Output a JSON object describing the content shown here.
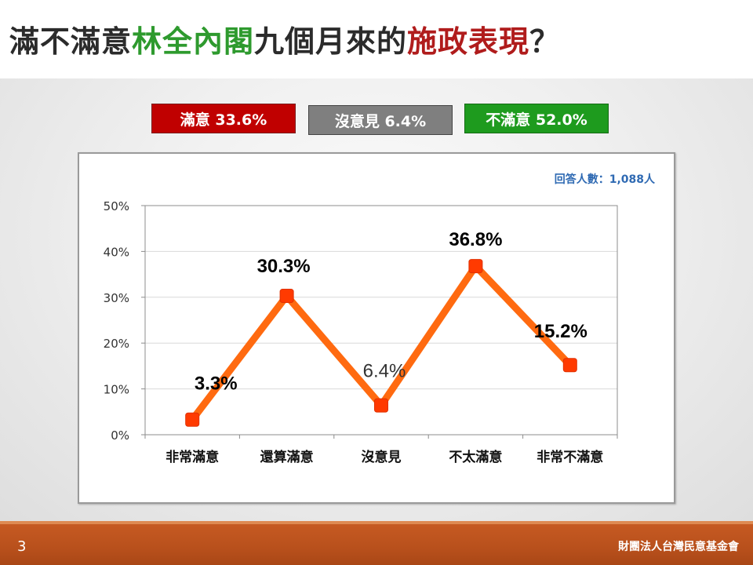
{
  "title": {
    "part1": "滿不滿意",
    "part2": "林全內閣",
    "part3": "九個月來的",
    "part4": "施政表現",
    "part5": "？"
  },
  "summary": {
    "satisfied": "滿意 33.6%",
    "neutral": "沒意見 6.4%",
    "dissatisfied": "不滿意 52.0%"
  },
  "sample_note": "回答人數：1,088人",
  "footer": {
    "page_number": "3",
    "organization": "財團法人台灣民意基金會"
  },
  "colors": {
    "line": "#ff6a10",
    "marker": "#ff3a00",
    "satisfied": "#c00000",
    "neutral": "#7f7f7f",
    "dissatisfied": "#1e9b1e"
  },
  "chart_data": {
    "type": "line",
    "categories": [
      "非常滿意",
      "還算滿意",
      "沒意見",
      "不太滿意",
      "非常不滿意"
    ],
    "values": [
      3.3,
      30.3,
      6.4,
      36.8,
      15.2
    ],
    "labels": [
      "3.3%",
      "30.3%",
      "6.4%",
      "36.8%",
      "15.2%"
    ],
    "y_ticks": [
      "0%",
      "10%",
      "20%",
      "30%",
      "40%",
      "50%"
    ],
    "ylim": [
      0,
      50
    ],
    "grid": true,
    "legend": "none"
  }
}
